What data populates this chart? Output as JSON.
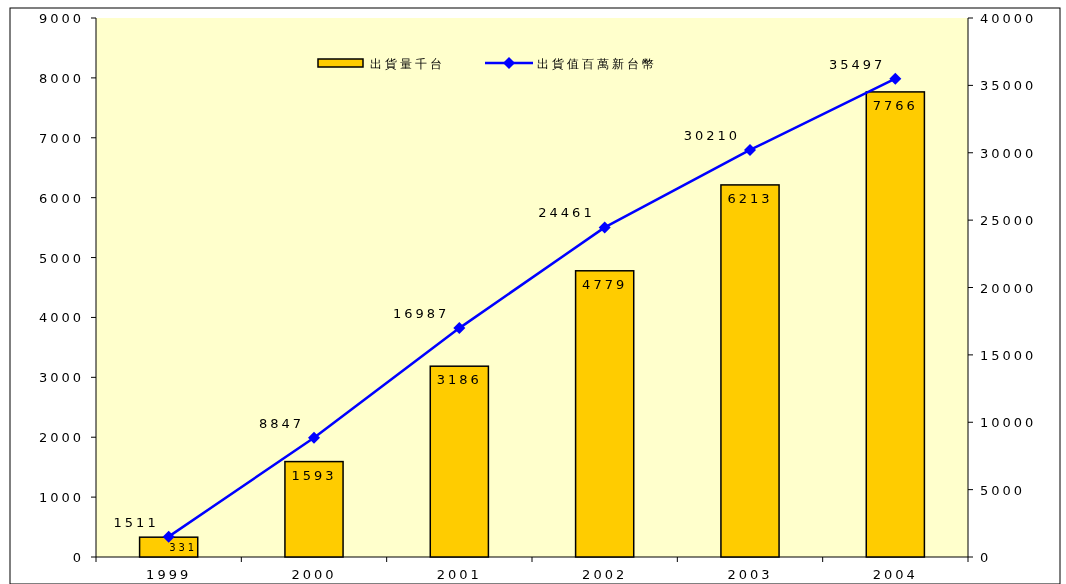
{
  "chart_data": {
    "type": "bar",
    "categories": [
      "1999",
      "2000",
      "2001",
      "2002",
      "2003",
      "2004"
    ],
    "series": [
      {
        "name": "出貨量千台",
        "color": "#ffcc00",
        "values": [
          331,
          1593,
          3186,
          4779,
          6213,
          7766
        ]
      },
      {
        "name": "出貨值百萬新台幣",
        "type": "line",
        "axis": "y2",
        "color": "#0000ff",
        "marker": "diamond",
        "values": [
          1511,
          8847,
          16987,
          24461,
          30210,
          35497
        ]
      }
    ],
    "ylim": [
      0,
      9000
    ],
    "yticks": [
      0,
      1000,
      2000,
      3000,
      4000,
      5000,
      6000,
      7000,
      8000,
      9000
    ],
    "y2lim": [
      0,
      40000
    ],
    "y2ticks": [
      0,
      5000,
      10000,
      15000,
      20000,
      25000,
      30000,
      35000,
      40000
    ],
    "data_labels": true,
    "legend": "top",
    "grid": false
  }
}
